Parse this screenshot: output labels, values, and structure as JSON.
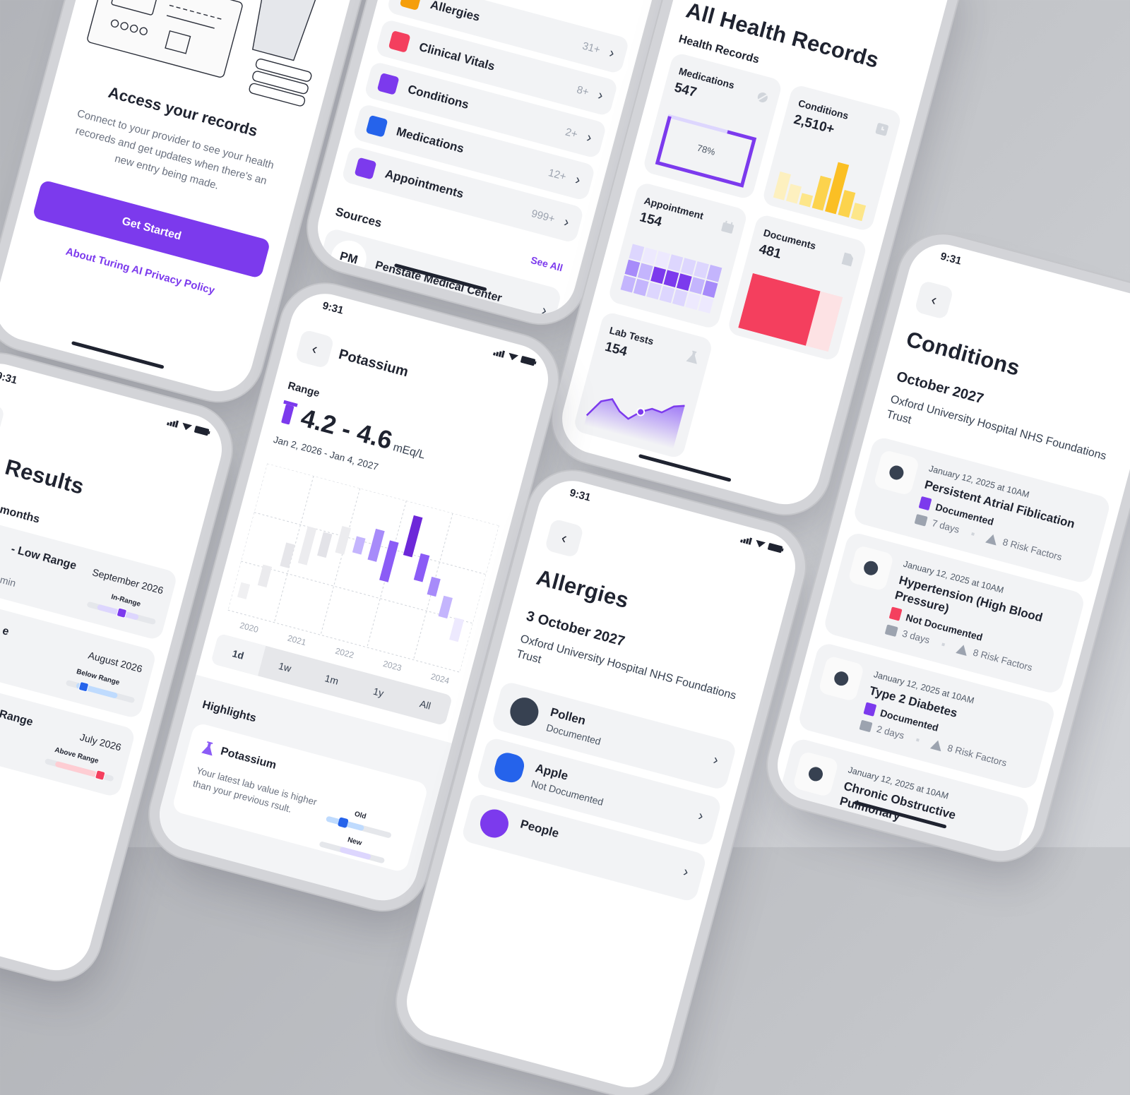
{
  "colors": {
    "accent": "#7c3aed",
    "background": "#bfc1c6",
    "danger": "#f43f5e",
    "info": "#2563eb",
    "warning": "#fbbf24",
    "text": "#1f2330"
  },
  "onboarding": {
    "title": "Access your records",
    "description": "Connect to your provider to see your health recoreds and get updates when there's an new entry being made.",
    "cta": "Get Started",
    "privacy_link": "About Turing AI Privacy Policy"
  },
  "records_list": {
    "items": [
      {
        "label": "Allergies",
        "count": "31+",
        "icon": "allergy-icon",
        "color": "#f59e0b"
      },
      {
        "label": "Clinical Vitals",
        "count": "8+",
        "icon": "vitals-icon",
        "color": "#f43f5e"
      },
      {
        "label": "Conditions",
        "count": "2+",
        "icon": "stethoscope-icon",
        "color": "#7c3aed"
      },
      {
        "label": "Medications",
        "count": "12+",
        "icon": "pill-bottle-icon",
        "color": "#2563eb"
      },
      {
        "label": "Appointments",
        "count": "999+",
        "icon": "calendar-icon",
        "color": "#7c3aed"
      }
    ],
    "sources_title": "Sources",
    "see_all": "See All",
    "source": {
      "initials": "PM",
      "name": "Penstate Medical Center"
    }
  },
  "health_records": {
    "title": "All Health Records",
    "section": "Health Records",
    "medications": {
      "label": "Medications",
      "value": "547",
      "progress_label": "78%",
      "progress": 0.78
    },
    "conditions": {
      "label": "Conditions",
      "value": "2,510+",
      "bars": [
        0.5,
        0.33,
        0.22,
        0.62,
        0.95,
        0.48,
        0.3
      ]
    },
    "appointment": {
      "label": "Appointment",
      "value": "154",
      "heatmap": [
        [
          1,
          0,
          0,
          1,
          1,
          1,
          2
        ],
        [
          3,
          2,
          4,
          4,
          4,
          2,
          3
        ],
        [
          2,
          2,
          1,
          1,
          1,
          0,
          0
        ]
      ]
    },
    "documents": {
      "label": "Documents",
      "value": "481",
      "fill": 0.75
    },
    "lab_tests": {
      "label": "Lab Tests",
      "value": "154",
      "sparkline": [
        0.15,
        0.5,
        0.6,
        0.4,
        0.3,
        0.5,
        0.62,
        0.6,
        0.78,
        0.85
      ],
      "highlight_index": 5
    }
  },
  "lab_results": {
    "time": "9:31",
    "title": "Results",
    "period": "months",
    "items": [
      {
        "title": "- Low Range",
        "subtitle": "min",
        "date": "September 2026",
        "status": "In-Range",
        "level": 0.5,
        "color": "#7c3aed",
        "track": "#ddd6fe"
      },
      {
        "title": "e",
        "date": "August 2026",
        "status": "Below Range",
        "level": 0.25,
        "color": "#2563eb",
        "track": "#bfdbfe"
      },
      {
        "title": "Range",
        "date": "July 2026",
        "status": "Above Range",
        "level": 0.8,
        "color": "#f43f5e",
        "track": "#fecdd3"
      }
    ]
  },
  "potassium": {
    "time": "9:31",
    "title": "Potassium",
    "range_label": "Range",
    "value": "4.2 - 4.6",
    "unit": "mEq/L",
    "date_range": "Jan 2, 2026 - Jan 4, 2027",
    "chart_years": [
      "2020",
      "2021",
      "2022",
      "2023",
      "2024"
    ],
    "bars": [
      {
        "low": 10,
        "high": 20,
        "color": "#f0f0f2"
      },
      {
        "low": 21,
        "high": 35,
        "color": "#ebebee"
      },
      {
        "low": 37,
        "high": 53,
        "color": "#e6e6ea"
      },
      {
        "low": 42,
        "high": 67,
        "color": "#ececef"
      },
      {
        "low": 50,
        "high": 66,
        "color": "#e3e3e8"
      },
      {
        "low": 55,
        "high": 73,
        "color": "#ececef"
      },
      {
        "low": 58,
        "high": 69,
        "color": "#c4b5fd"
      },
      {
        "low": 56,
        "high": 77,
        "color": "#a78bfa"
      },
      {
        "low": 45,
        "high": 72,
        "color": "#8b5cf6"
      },
      {
        "low": 65,
        "high": 92,
        "color": "#6d28d9"
      },
      {
        "low": 51,
        "high": 69,
        "color": "#8b5cf6"
      },
      {
        "low": 44,
        "high": 56,
        "color": "#a78bfa"
      },
      {
        "low": 32,
        "high": 46,
        "color": "#c4b5fd"
      },
      {
        "low": 19,
        "high": 34,
        "color": "#ede9fe"
      }
    ],
    "tabs": [
      "1d",
      "1w",
      "1m",
      "1y",
      "All"
    ],
    "active_tab": "1d",
    "highlights_title": "Highlights",
    "highlight": {
      "title": "Potassium",
      "description": "Your latest lab value is higher than your previous rsult.",
      "old_label": "Old",
      "new_label": "New"
    }
  },
  "allergies": {
    "time": "9:31",
    "title": "Allergies",
    "date": "3 October 2027",
    "provider": "Oxford University Hospital NHS Foundations Trust",
    "items": [
      {
        "name": "Pollen",
        "status": "Documented"
      },
      {
        "name": "Apple",
        "status": "Not Documented"
      },
      {
        "name": "People"
      }
    ]
  },
  "conditions": {
    "time": "9:31",
    "title": "Conditions",
    "date": "October 2027",
    "provider": "Oxford University Hospital NHS Foundations Trust",
    "items": [
      {
        "date": "January 12, 2025 at 10AM",
        "title": "Persistent Atrial Fiblication",
        "status": "Documented",
        "documented": true,
        "duration": "7 days",
        "risk": "8 Risk Factors",
        "icon": "lungs-icon"
      },
      {
        "date": "January 12, 2025 at 10AM",
        "title": "Hypertension (High Blood Pressure)",
        "status": "Not Documented",
        "documented": false,
        "duration": "3 days",
        "risk": "8 Risk Factors",
        "icon": "blood-drop-icon"
      },
      {
        "date": "January 12, 2025 at 10AM",
        "title": "Type 2 Diabetes",
        "status": "Documented",
        "documented": true,
        "duration": "2 days",
        "risk": "8 Risk Factors",
        "icon": "pancreas-icon"
      },
      {
        "date": "January 12, 2025 at 10AM",
        "title": "Chronic Obstructive Pulmonary",
        "icon": "bone-icon"
      }
    ]
  }
}
